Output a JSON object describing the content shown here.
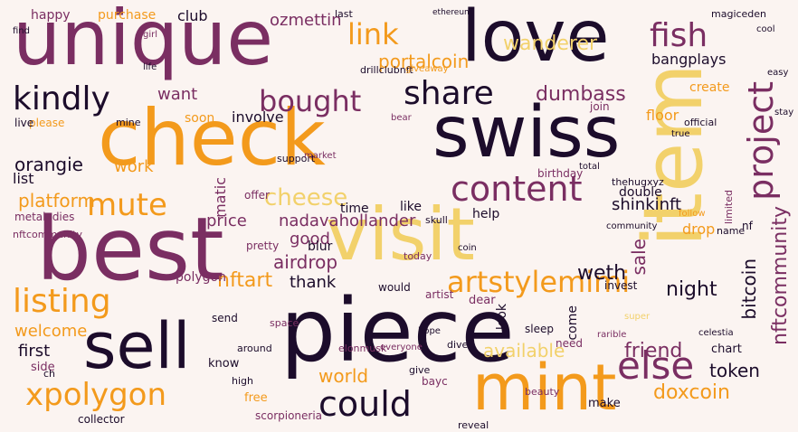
{
  "palette": {
    "background": "#fbf4f1",
    "dark": "#1c0c2b",
    "purple": "#7a2e62",
    "magenta": "#9b3a6b",
    "orange": "#f39a1c",
    "yellow": "#f2d16b"
  },
  "words": [
    {
      "text": "unique"
    },
    {
      "text": "check"
    },
    {
      "text": "love"
    },
    {
      "text": "swiss"
    },
    {
      "text": "best"
    },
    {
      "text": "visit"
    },
    {
      "text": "item"
    },
    {
      "text": "piece"
    },
    {
      "text": "sell"
    },
    {
      "text": "mint"
    },
    {
      "text": "kindly"
    },
    {
      "text": "share"
    },
    {
      "text": "link"
    },
    {
      "text": "fish"
    },
    {
      "text": "project"
    },
    {
      "text": "content"
    },
    {
      "text": "bought"
    },
    {
      "text": "mute"
    },
    {
      "text": "cheese"
    },
    {
      "text": "listing"
    },
    {
      "text": "artstylemimi"
    },
    {
      "text": "xpolygon"
    },
    {
      "text": "could"
    },
    {
      "text": "else"
    },
    {
      "text": "orangie"
    },
    {
      "text": "dumbass"
    },
    {
      "text": "want"
    },
    {
      "text": "portalcoin"
    },
    {
      "text": "wanderer"
    },
    {
      "text": "bangplays"
    },
    {
      "text": "ozmettin"
    },
    {
      "text": "happy"
    },
    {
      "text": "purchase"
    },
    {
      "text": "club"
    },
    {
      "text": "last"
    },
    {
      "text": "ethereum"
    },
    {
      "text": "magiceden"
    },
    {
      "text": "nftcommunity"
    },
    {
      "text": "bitcoin"
    },
    {
      "text": "weth"
    },
    {
      "text": "night"
    },
    {
      "text": "friend"
    },
    {
      "text": "token"
    },
    {
      "text": "doxcoin"
    },
    {
      "text": "available"
    },
    {
      "text": "world"
    },
    {
      "text": "thank"
    },
    {
      "text": "airdrop"
    },
    {
      "text": "nftart"
    },
    {
      "text": "nadavahollander"
    },
    {
      "text": "shinkinft"
    },
    {
      "text": "sale"
    },
    {
      "text": "drop"
    },
    {
      "text": "price"
    },
    {
      "text": "good"
    },
    {
      "text": "platform"
    },
    {
      "text": "list"
    },
    {
      "text": "work"
    },
    {
      "text": "involve"
    },
    {
      "text": "soon"
    },
    {
      "text": "floor"
    },
    {
      "text": "create"
    },
    {
      "text": "welcome"
    },
    {
      "text": "first"
    },
    {
      "text": "polygon"
    },
    {
      "text": "time"
    },
    {
      "text": "like"
    },
    {
      "text": "help"
    },
    {
      "text": "double"
    },
    {
      "text": "support"
    },
    {
      "text": "birthday"
    },
    {
      "text": "thehugxyz"
    },
    {
      "text": "metaladies"
    },
    {
      "text": "matic"
    },
    {
      "text": "pretty"
    },
    {
      "text": "blur"
    },
    {
      "text": "skull"
    },
    {
      "text": "free"
    },
    {
      "text": "collector"
    },
    {
      "text": "scorpioneria"
    },
    {
      "text": "know"
    },
    {
      "text": "around"
    },
    {
      "text": "side"
    },
    {
      "text": "make"
    },
    {
      "text": "beauty"
    },
    {
      "text": "need"
    },
    {
      "text": "come"
    },
    {
      "text": "sleep"
    },
    {
      "text": "chart"
    },
    {
      "text": "dear"
    },
    {
      "text": "artist"
    },
    {
      "text": "would"
    },
    {
      "text": "invest"
    },
    {
      "text": "celestia"
    },
    {
      "text": "give"
    },
    {
      "text": "high"
    },
    {
      "text": "total"
    },
    {
      "text": "offer"
    },
    {
      "text": "market"
    },
    {
      "text": "nftcommunity"
    },
    {
      "text": "please"
    },
    {
      "text": "live"
    },
    {
      "text": "mine"
    },
    {
      "text": "drillclubnft"
    },
    {
      "text": "giveaway"
    },
    {
      "text": "life"
    },
    {
      "text": "girl"
    },
    {
      "text": "join"
    },
    {
      "text": "official"
    },
    {
      "text": "true"
    },
    {
      "text": "limited"
    },
    {
      "text": "community"
    },
    {
      "text": "name"
    },
    {
      "text": "bayc"
    },
    {
      "text": "elonmusk"
    },
    {
      "text": "reveal"
    },
    {
      "text": "space"
    },
    {
      "text": "send"
    },
    {
      "text": "look"
    },
    {
      "text": "dive"
    },
    {
      "text": "everyone"
    },
    {
      "text": "ch"
    },
    {
      "text": "rarible"
    },
    {
      "text": "cool"
    },
    {
      "text": "bear"
    },
    {
      "text": "today"
    },
    {
      "text": "coin"
    },
    {
      "text": "super"
    },
    {
      "text": "easy"
    },
    {
      "text": "stay"
    },
    {
      "text": "hope"
    },
    {
      "text": "nf"
    },
    {
      "text": "follow"
    },
    {
      "text": "find"
    }
  ]
}
